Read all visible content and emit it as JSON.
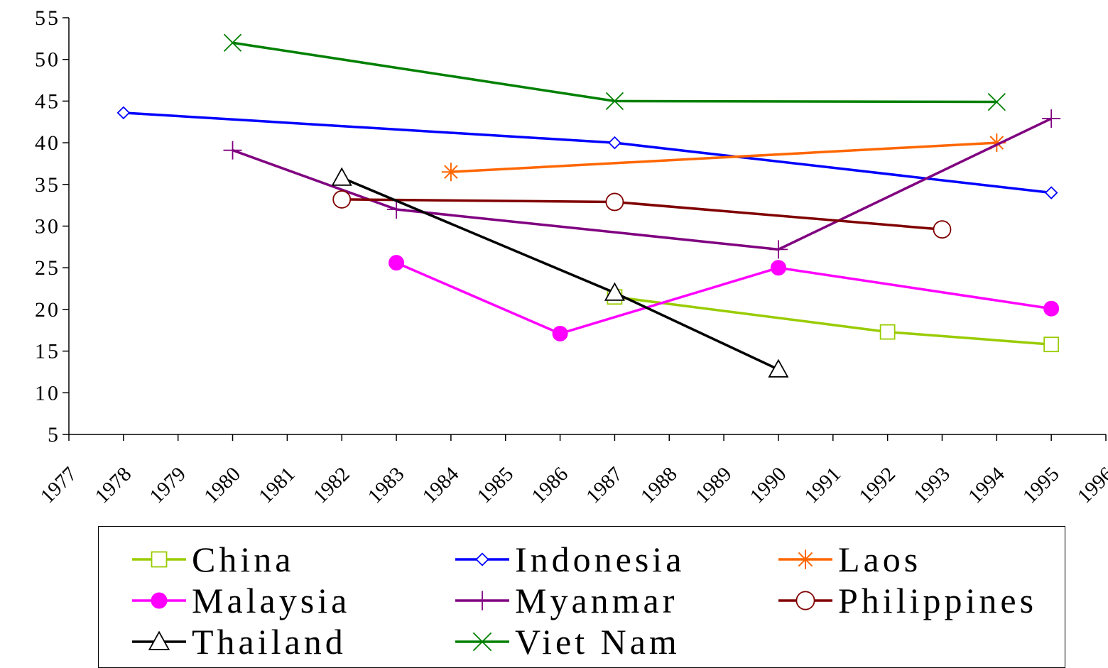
{
  "chart_data": {
    "type": "line",
    "title": "",
    "xlabel": "",
    "ylabel": "",
    "xlim": [
      1977,
      1996
    ],
    "ylim": [
      5,
      55
    ],
    "x_ticks": [
      "1977",
      "1978",
      "1979",
      "1980",
      "1981",
      "1982",
      "1983",
      "1984",
      "1985",
      "1986",
      "1987",
      "1988",
      "1989",
      "1990",
      "1991",
      "1992",
      "1993",
      "1994",
      "1995",
      "1996"
    ],
    "y_ticks": [
      "5",
      "10",
      "15",
      "20",
      "25",
      "30",
      "35",
      "40",
      "45",
      "50",
      "55"
    ],
    "grid": false,
    "legend_position": "bottom",
    "series": [
      {
        "name": "China",
        "color": "#99CC00",
        "marker": "square-open",
        "points": [
          [
            1987.0,
            21.5
          ],
          [
            1992.0,
            17.3
          ],
          [
            1995.0,
            15.8
          ]
        ]
      },
      {
        "name": "Indonesia",
        "color": "#0000FF",
        "marker": "diamond-open",
        "points": [
          [
            1978.0,
            43.6
          ],
          [
            1987.0,
            40.0
          ],
          [
            1995.0,
            34.0
          ]
        ]
      },
      {
        "name": "Laos",
        "color": "#FF6600",
        "marker": "asterisk",
        "points": [
          [
            1984.0,
            36.5
          ],
          [
            1994.0,
            40.0
          ]
        ]
      },
      {
        "name": "Malaysia",
        "color": "#FF00FF",
        "marker": "circle-filled",
        "points": [
          [
            1983.0,
            25.6
          ],
          [
            1986.0,
            17.1
          ],
          [
            1990.0,
            25.0
          ],
          [
            1995.0,
            20.1
          ]
        ]
      },
      {
        "name": "Myanmar",
        "color": "#800080",
        "marker": "plus",
        "points": [
          [
            1980.0,
            39.1
          ],
          [
            1983.0,
            32.0
          ],
          [
            1990.0,
            27.2
          ],
          [
            1995.0,
            42.9
          ]
        ]
      },
      {
        "name": "Philippines",
        "color": "#800000",
        "marker": "circle-open",
        "points": [
          [
            1982.0,
            33.2
          ],
          [
            1987.0,
            32.9
          ],
          [
            1993.0,
            29.6
          ]
        ]
      },
      {
        "name": "Thailand",
        "color": "#000000",
        "marker": "triangle-open",
        "points": [
          [
            1982.0,
            35.8
          ],
          [
            1987.0,
            22.0
          ],
          [
            1990.0,
            12.8
          ]
        ]
      },
      {
        "name": "Viet Nam",
        "color": "#008000",
        "marker": "x",
        "points": [
          [
            1980.0,
            52.0
          ],
          [
            1987.0,
            45.0
          ],
          [
            1994.0,
            44.9
          ]
        ]
      }
    ]
  }
}
